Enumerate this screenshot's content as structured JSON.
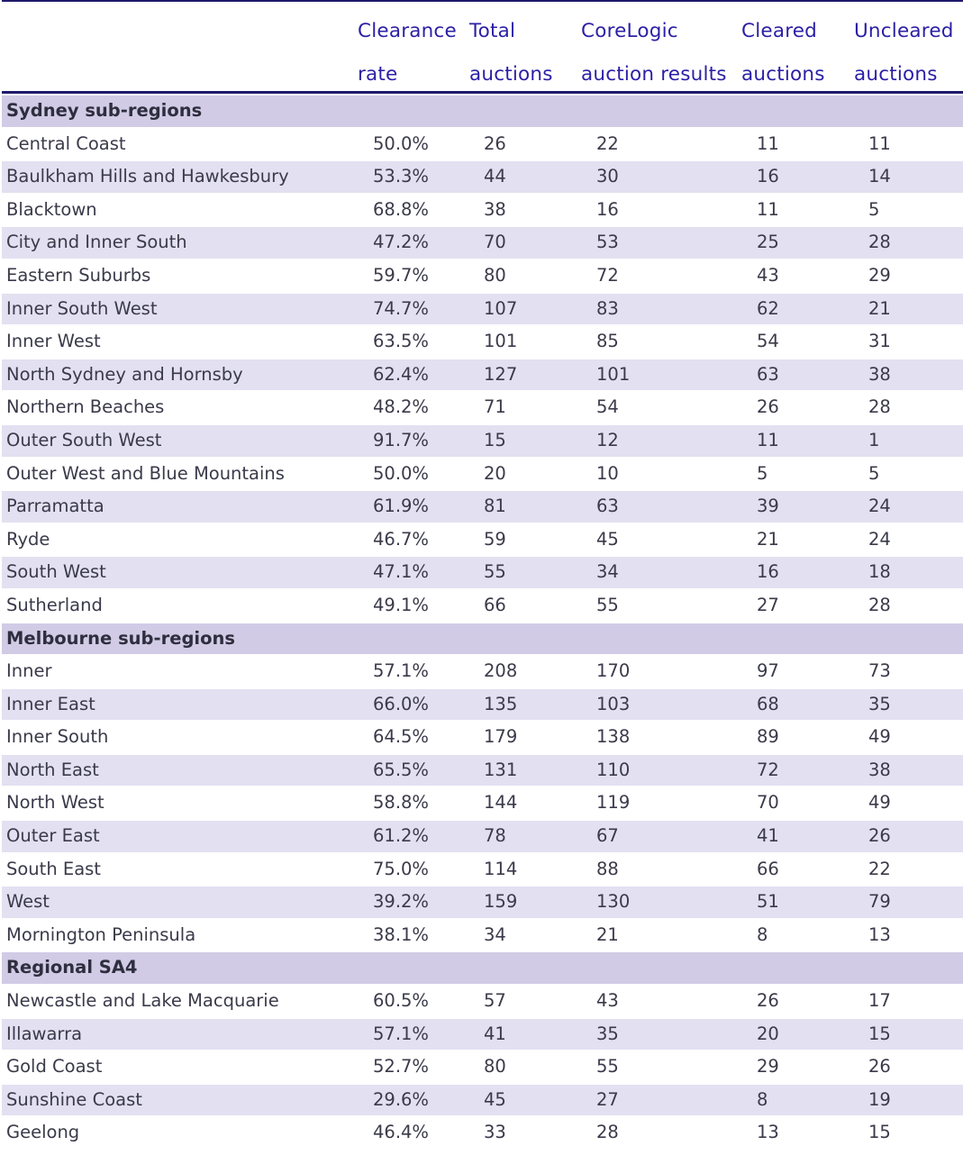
{
  "headers": [
    {
      "line1": "",
      "line2": ""
    },
    {
      "line1": "Clearance",
      "line2": "rate"
    },
    {
      "line1": "Total",
      "line2": "auctions"
    },
    {
      "line1": "CoreLogic",
      "line2": "auction results"
    },
    {
      "line1": "Cleared",
      "line2": "auctions"
    },
    {
      "line1": "Uncleared",
      "line2": "auctions"
    }
  ],
  "sections": [
    {
      "title": "Sydney sub-regions",
      "rows": [
        [
          "Central Coast",
          "50.0%",
          "26",
          "22",
          "11",
          "11"
        ],
        [
          "Baulkham Hills and Hawkesbury",
          "53.3%",
          "44",
          "30",
          "16",
          "14"
        ],
        [
          "Blacktown",
          "68.8%",
          "38",
          "16",
          "11",
          "5"
        ],
        [
          "City and Inner South",
          "47.2%",
          "70",
          "53",
          "25",
          "28"
        ],
        [
          "Eastern Suburbs",
          "59.7%",
          "80",
          "72",
          "43",
          "29"
        ],
        [
          "Inner South West",
          "74.7%",
          "107",
          "83",
          "62",
          "21"
        ],
        [
          "Inner West",
          "63.5%",
          "101",
          "85",
          "54",
          "31"
        ],
        [
          "North Sydney and Hornsby",
          "62.4%",
          "127",
          "101",
          "63",
          "38"
        ],
        [
          "Northern Beaches",
          "48.2%",
          "71",
          "54",
          "26",
          "28"
        ],
        [
          "Outer South West",
          "91.7%",
          "15",
          "12",
          "11",
          "1"
        ],
        [
          "Outer West and Blue Mountains",
          "50.0%",
          "20",
          "10",
          "5",
          "5"
        ],
        [
          "Parramatta",
          "61.9%",
          "81",
          "63",
          "39",
          "24"
        ],
        [
          "Ryde",
          "46.7%",
          "59",
          "45",
          "21",
          "24"
        ],
        [
          "South West",
          "47.1%",
          "55",
          "34",
          "16",
          "18"
        ],
        [
          "Sutherland",
          "49.1%",
          "66",
          "55",
          "27",
          "28"
        ]
      ]
    },
    {
      "title": "Melbourne sub-regions",
      "rows": [
        [
          "Inner",
          "57.1%",
          "208",
          "170",
          "97",
          "73"
        ],
        [
          "Inner East",
          "66.0%",
          "135",
          "103",
          "68",
          "35"
        ],
        [
          "Inner South",
          "64.5%",
          "179",
          "138",
          "89",
          "49"
        ],
        [
          "North East",
          "65.5%",
          "131",
          "110",
          "72",
          "38"
        ],
        [
          "North West",
          "58.8%",
          "144",
          "119",
          "70",
          "49"
        ],
        [
          "Outer East",
          "61.2%",
          "78",
          "67",
          "41",
          "26"
        ],
        [
          "South East",
          "75.0%",
          "114",
          "88",
          "66",
          "22"
        ],
        [
          "West",
          "39.2%",
          "159",
          "130",
          "51",
          "79"
        ],
        [
          "Mornington Peninsula",
          "38.1%",
          "34",
          "21",
          "8",
          "13"
        ]
      ]
    },
    {
      "title": "Regional SA4",
      "rows": [
        [
          "Newcastle and Lake Macquarie",
          "60.5%",
          "57",
          "43",
          "26",
          "17"
        ],
        [
          "Illawarra",
          "57.1%",
          "41",
          "35",
          "20",
          "15"
        ],
        [
          "Gold Coast",
          "52.7%",
          "80",
          "55",
          "29",
          "26"
        ],
        [
          "Sunshine Coast",
          "29.6%",
          "45",
          "27",
          "8",
          "19"
        ],
        [
          "Geelong",
          "46.4%",
          "33",
          "28",
          "13",
          "15"
        ]
      ]
    }
  ],
  "colors": {
    "header_text": "#2b1fa6",
    "rule": "#1f1a6b",
    "section_bg": "#d1cbe6",
    "stripe_bg": "#e3e0f1"
  }
}
